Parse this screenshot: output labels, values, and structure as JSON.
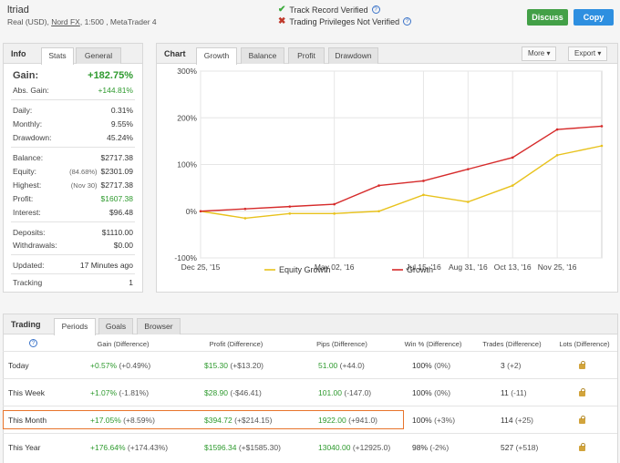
{
  "header": {
    "title": "ltriad",
    "subtitle_prefix": "Real (USD),",
    "broker": "Nord FX",
    "subtitle_suffix": ", 1:500 , MetaTrader 4",
    "track_record": "Track Record Verified",
    "trading_privileges": "Trading Privileges Not Verified",
    "discuss": "Discuss",
    "copy": "Copy"
  },
  "info": {
    "title": "Info",
    "tabs": [
      "Stats",
      "General"
    ],
    "gain_label": "Gain:",
    "gain_value": "+182.75%",
    "rows": [
      {
        "label": "Abs. Gain:",
        "value": "+144.81%",
        "note": ""
      },
      {
        "label": "Daily:",
        "value": "0.31%",
        "note": ""
      },
      {
        "label": "Monthly:",
        "value": "9.55%",
        "note": ""
      },
      {
        "label": "Drawdown:",
        "value": "45.24%",
        "note": ""
      },
      {
        "label": "Balance:",
        "value": "$2717.38",
        "note": ""
      },
      {
        "label": "Equity:",
        "value": "$2301.09",
        "note": "(84.68%)"
      },
      {
        "label": "Highest:",
        "value": "$2717.38",
        "note": "(Nov 30)"
      },
      {
        "label": "Profit:",
        "value": "$1607.38",
        "note": ""
      },
      {
        "label": "Interest:",
        "value": "$96.48",
        "note": ""
      },
      {
        "label": "Deposits:",
        "value": "$1110.00",
        "note": ""
      },
      {
        "label": "Withdrawals:",
        "value": "$0.00",
        "note": ""
      },
      {
        "label": "Updated:",
        "value": "17 Minutes ago",
        "note": ""
      },
      {
        "label": "Tracking",
        "value": "1",
        "note": ""
      }
    ]
  },
  "chart_panel": {
    "title": "Chart",
    "tabs": [
      "Growth",
      "Balance",
      "Profit",
      "Drawdown"
    ],
    "more": "More",
    "export": "Export"
  },
  "chart_data": {
    "type": "line",
    "x": [
      "Dec 25, '15",
      "Jan 31, '16",
      "Mar 15, '16",
      "May 02, '16",
      "Jun 10, '16",
      "Jul 15, '16",
      "Aug 31, '16",
      "Oct 13, '16",
      "Nov 25, '16",
      "Dec 01, '16"
    ],
    "x_ticks": [
      "Dec 25, '15",
      "May 02, '16",
      "Jul 15, '16",
      "Aug 31, '16",
      "Oct 13, '16",
      "Nov 25, '16"
    ],
    "y_ticks": [
      "300%",
      "200%",
      "100%",
      "0%",
      "-100%"
    ],
    "ylim": [
      -100,
      300
    ],
    "series": [
      {
        "name": "Equity Growth",
        "color": "#e8c21c",
        "values": [
          0,
          -15,
          -5,
          -5,
          0,
          35,
          20,
          55,
          120,
          140
        ]
      },
      {
        "name": "Growth",
        "color": "#d62b2b",
        "values": [
          0,
          5,
          10,
          15,
          55,
          65,
          90,
          115,
          175,
          182
        ]
      }
    ],
    "grid": true,
    "legend": "bottom"
  },
  "trading": {
    "title": "Trading",
    "tabs": [
      "Periods",
      "Goals",
      "Browser"
    ],
    "columns": [
      "Gain (Difference)",
      "Profit (Difference)",
      "Pips (Difference)",
      "Win % (Difference)",
      "Trades (Difference)",
      "Lots (Difference)"
    ],
    "rows": [
      {
        "period": "Today",
        "gain": "+0.57%",
        "gain_diff": "(+0.49%)",
        "profit": "$15.30",
        "profit_diff": "(+$13.20)",
        "pips": "51.00",
        "pips_diff": "(+44.0)",
        "win": "100%",
        "win_diff": "(0%)",
        "trades": "3",
        "trades_diff": "(+2)"
      },
      {
        "period": "This Week",
        "gain": "+1.07%",
        "gain_diff": "(-1.81%)",
        "profit": "$28.90",
        "profit_diff": "(-$46.41)",
        "pips": "101.00",
        "pips_diff": "(-147.0)",
        "win": "100%",
        "win_diff": "(0%)",
        "trades": "11",
        "trades_diff": "(-11)"
      },
      {
        "period": "This Month",
        "gain": "+17.05%",
        "gain_diff": "(+8.59%)",
        "profit": "$394.72",
        "profit_diff": "(+$214.15)",
        "pips": "1922.00",
        "pips_diff": "(+941.0)",
        "win": "100%",
        "win_diff": "(+3%)",
        "trades": "114",
        "trades_diff": "(+25)"
      },
      {
        "period": "This Year",
        "gain": "+176.64%",
        "gain_diff": "(+174.43%)",
        "profit": "$1596.34",
        "profit_diff": "(+$1585.30)",
        "pips": "13040.00",
        "pips_diff": "(+12925.0)",
        "win": "98%",
        "win_diff": "(-2%)",
        "trades": "527",
        "trades_diff": "(+518)"
      }
    ]
  }
}
